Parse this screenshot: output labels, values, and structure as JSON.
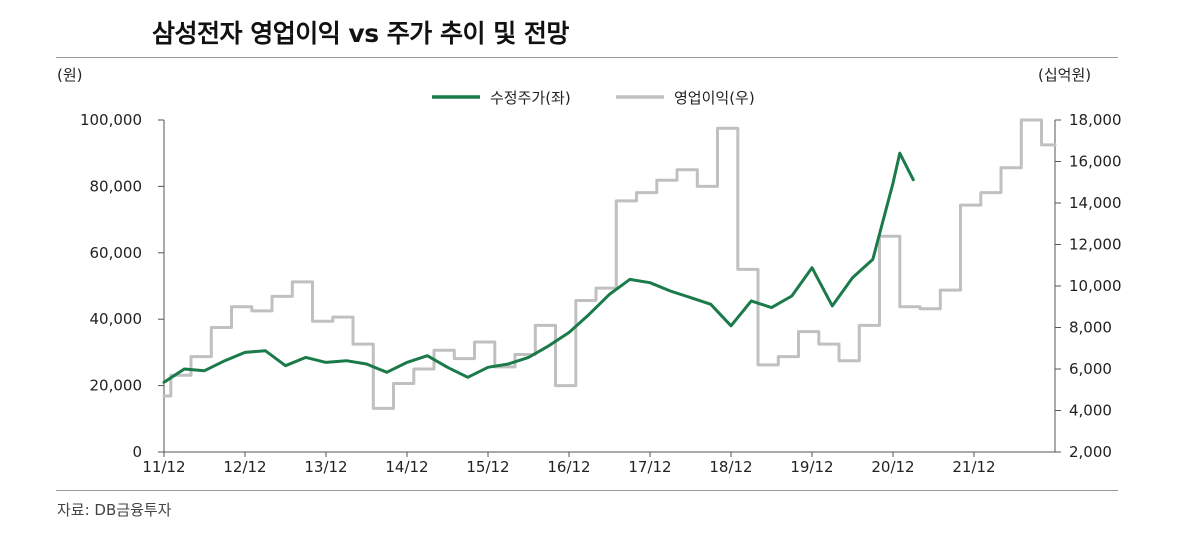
{
  "title": "삼성전자 영업이익 vs 주가 추이 및 전망",
  "left_unit": "(원)",
  "right_unit": "(십억원)",
  "source": "자료: DB금융투자",
  "colors": {
    "price": "#1a7a4a",
    "profit": "#c0c0c0",
    "axis": "#555555"
  },
  "chart_data": {
    "type": "line",
    "title": "삼성전자 영업이익 vs 주가 추이 및 전망",
    "legend_position": "top-center",
    "grid": false,
    "x_ticks": [
      "11/12",
      "12/12",
      "13/12",
      "14/12",
      "15/12",
      "16/12",
      "17/12",
      "18/12",
      "19/12",
      "20/12",
      "21/12"
    ],
    "xlim": [
      "11/12",
      "22/12"
    ],
    "y_left": {
      "label": "(원)",
      "range": [
        0,
        100000
      ],
      "ticks": [
        "0",
        "20,000",
        "40,000",
        "60,000",
        "80,000",
        "100,000"
      ]
    },
    "y_right": {
      "label": "(십억원)",
      "range": [
        2000,
        18000
      ],
      "ticks": [
        "2,000",
        "4,000",
        "6,000",
        "8,000",
        "10,000",
        "12,000",
        "14,000",
        "16,000",
        "18,000"
      ]
    },
    "series": [
      {
        "name": "수정주가(좌)",
        "axis": "left",
        "style": "line",
        "points": [
          [
            "11/12",
            21000
          ],
          [
            "12/03",
            25000
          ],
          [
            "12/06",
            24500
          ],
          [
            "12/09",
            27500
          ],
          [
            "12/12",
            30000
          ],
          [
            "13/03",
            30500
          ],
          [
            "13/06",
            26000
          ],
          [
            "13/09",
            28500
          ],
          [
            "13/12",
            27000
          ],
          [
            "14/03",
            27500
          ],
          [
            "14/06",
            26500
          ],
          [
            "14/09",
            24000
          ],
          [
            "14/12",
            27000
          ],
          [
            "15/03",
            29000
          ],
          [
            "15/06",
            25500
          ],
          [
            "15/09",
            22500
          ],
          [
            "15/12",
            25500
          ],
          [
            "16/03",
            26500
          ],
          [
            "16/06",
            28500
          ],
          [
            "16/09",
            32000
          ],
          [
            "16/12",
            36000
          ],
          [
            "17/03",
            41500
          ],
          [
            "17/06",
            47500
          ],
          [
            "17/09",
            52000
          ],
          [
            "17/12",
            51000
          ],
          [
            "18/03",
            48500
          ],
          [
            "18/06",
            46500
          ],
          [
            "18/09",
            44500
          ],
          [
            "18/12",
            38000
          ],
          [
            "19/03",
            45500
          ],
          [
            "19/06",
            43500
          ],
          [
            "19/09",
            47000
          ],
          [
            "19/12",
            55500
          ],
          [
            "20/03",
            44000
          ],
          [
            "20/06",
            52500
          ],
          [
            "20/09",
            58000
          ],
          [
            "20/12",
            81000
          ],
          [
            "21/01",
            90000
          ],
          [
            "21/03",
            82000
          ]
        ]
      },
      {
        "name": "영업이익(우)",
        "axis": "right",
        "style": "step",
        "points": [
          [
            "11/12",
            4700
          ],
          [
            "12/01",
            5700
          ],
          [
            "12/04",
            6600
          ],
          [
            "12/07",
            8000
          ],
          [
            "12/10",
            9000
          ],
          [
            "13/01",
            8800
          ],
          [
            "13/04",
            9500
          ],
          [
            "13/07",
            10200
          ],
          [
            "13/10",
            8300
          ],
          [
            "14/01",
            8500
          ],
          [
            "14/04",
            7200
          ],
          [
            "14/07",
            4100
          ],
          [
            "14/10",
            5300
          ],
          [
            "15/01",
            6000
          ],
          [
            "15/04",
            6900
          ],
          [
            "15/07",
            6500
          ],
          [
            "15/10",
            7300
          ],
          [
            "16/01",
            6100
          ],
          [
            "16/04",
            6700
          ],
          [
            "16/07",
            8100
          ],
          [
            "16/10",
            5200
          ],
          [
            "17/01",
            9300
          ],
          [
            "17/04",
            9900
          ],
          [
            "17/07",
            14100
          ],
          [
            "17/10",
            14500
          ],
          [
            "18/01",
            15100
          ],
          [
            "18/04",
            15600
          ],
          [
            "18/07",
            14800
          ],
          [
            "18/10",
            17600
          ],
          [
            "19/01",
            10800
          ],
          [
            "19/04",
            6200
          ],
          [
            "19/07",
            6600
          ],
          [
            "19/10",
            7800
          ],
          [
            "20/01",
            7200
          ],
          [
            "20/04",
            6400
          ],
          [
            "20/07",
            8100
          ],
          [
            "20/10",
            12400
          ],
          [
            "21/01",
            9000
          ],
          [
            "21/04",
            8900
          ],
          [
            "21/07",
            9800
          ],
          [
            "21/10",
            13900
          ],
          [
            "22/01",
            14500
          ],
          [
            "22/04",
            15700
          ],
          [
            "22/07",
            18000
          ],
          [
            "22/10",
            16800
          ]
        ]
      }
    ]
  }
}
